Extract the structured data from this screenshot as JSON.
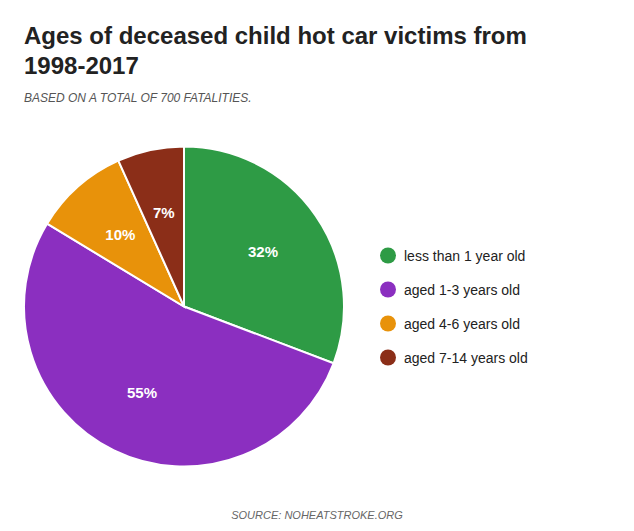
{
  "chart_data": {
    "type": "pie",
    "title": "Ages of deceased child hot car victims from 1998-2017",
    "subtitle": "BASED ON A TOTAL OF 700 FATALITIES.",
    "source": "SOURCE: NOHEATSTROKE.ORG",
    "categories": [
      "less than 1 year old",
      "aged 1-3 years old",
      "aged 4-6 years old",
      "aged 7-14 years old"
    ],
    "values": [
      32,
      55,
      10,
      7
    ],
    "value_labels": [
      "32%",
      "55%",
      "10%",
      "7%"
    ],
    "colors": [
      "#2e9b45",
      "#8b2fc0",
      "#e8920a",
      "#8b2e18"
    ],
    "data_labels": true,
    "legend": "right"
  }
}
